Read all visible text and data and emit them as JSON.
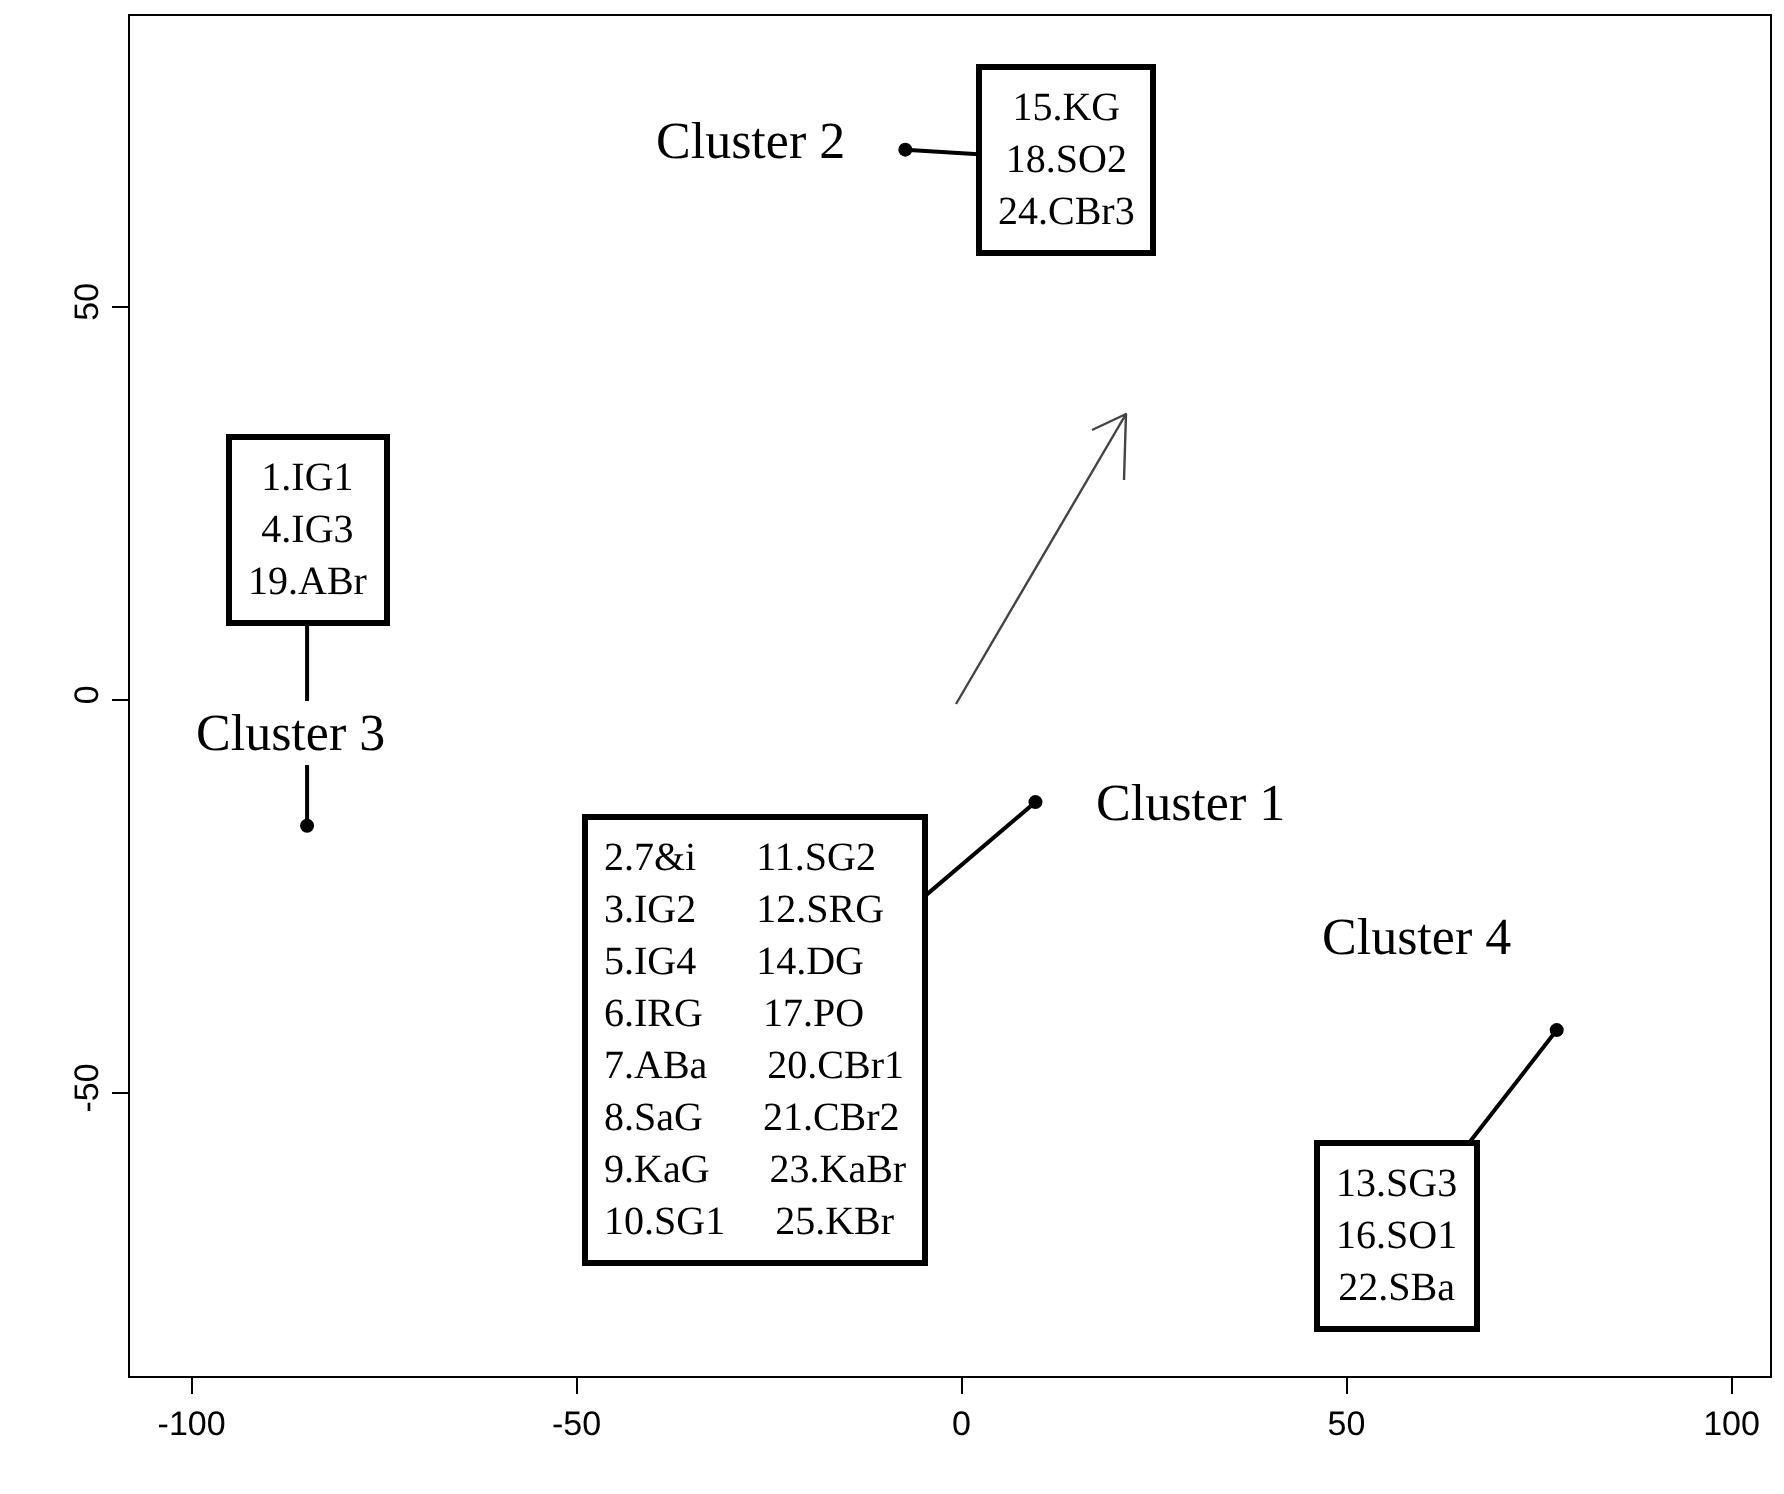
{
  "chart_data": {
    "type": "scatter",
    "xlim": [
      -108,
      105
    ],
    "ylim": [
      -86,
      87
    ],
    "xticks": [
      -100,
      -50,
      0,
      50,
      100
    ],
    "yticks": [
      -50,
      0,
      50
    ],
    "marker": "circle",
    "series": [
      {
        "color": "#000000",
        "x": [
          9.6,
          -7.3,
          -85,
          77.3
        ],
        "values": [
          -13,
          70,
          -16,
          -42
        ]
      }
    ],
    "annotations": [
      {
        "text": "Cluster 1",
        "x": 9.6,
        "y": -13
      },
      {
        "text": "Cluster 2",
        "x": -7.3,
        "y": 70
      },
      {
        "text": "Cluster 3",
        "x": -85,
        "y": -16
      },
      {
        "text": "Cluster 4",
        "x": 77.3,
        "y": -42
      },
      {
        "text": "2.7&i\t11.SG2\n3.IG2\t12.SRG\n5.IG4\t14.DG\n6.IRG\t17.PO\n7.ABa\t20.CBr1\n8.SaG\t21.CBr2\n9.KaG\t23.KaBr\n10.SG1\t25.KBr",
        "x": 9.6,
        "y": -13
      },
      {
        "text": "15.KG\n18.SO2\n24.CBr3",
        "x": -7.3,
        "y": 70
      },
      {
        "text": "1.IG1\n4.IG3\n19.ABr",
        "x": -85,
        "y": -16
      },
      {
        "text": "13.SG3\n16.SO1\n22.SBa",
        "x": 77.3,
        "y": -42
      }
    ]
  }
}
